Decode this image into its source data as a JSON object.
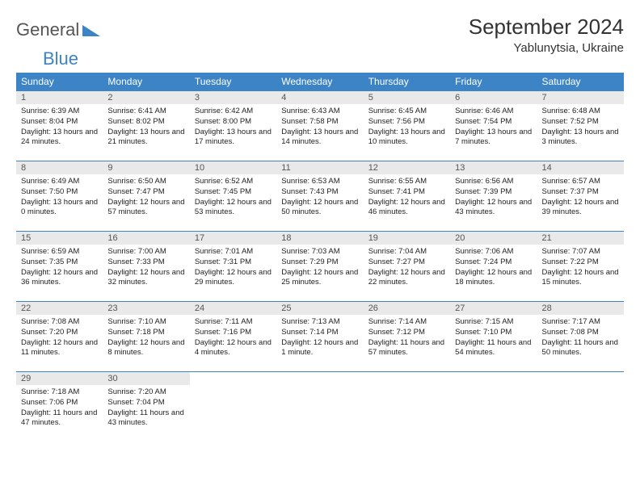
{
  "logo": {
    "text1": "Genera",
    "text2": "l",
    "text3": "Blue"
  },
  "header": {
    "title": "September 2024",
    "location": "Yablunytsia, Ukraine"
  },
  "colors": {
    "header_bg": "#3d84c6",
    "header_fg": "#ffffff",
    "daynum_bg": "#e9e9e9",
    "border": "#3d84c6",
    "text": "#222222"
  },
  "day_headers": [
    "Sunday",
    "Monday",
    "Tuesday",
    "Wednesday",
    "Thursday",
    "Friday",
    "Saturday"
  ],
  "weeks": [
    [
      {
        "n": "1",
        "sr": "6:39 AM",
        "ss": "8:04 PM",
        "dl": "13 hours and 24 minutes."
      },
      {
        "n": "2",
        "sr": "6:41 AM",
        "ss": "8:02 PM",
        "dl": "13 hours and 21 minutes."
      },
      {
        "n": "3",
        "sr": "6:42 AM",
        "ss": "8:00 PM",
        "dl": "13 hours and 17 minutes."
      },
      {
        "n": "4",
        "sr": "6:43 AM",
        "ss": "7:58 PM",
        "dl": "13 hours and 14 minutes."
      },
      {
        "n": "5",
        "sr": "6:45 AM",
        "ss": "7:56 PM",
        "dl": "13 hours and 10 minutes."
      },
      {
        "n": "6",
        "sr": "6:46 AM",
        "ss": "7:54 PM",
        "dl": "13 hours and 7 minutes."
      },
      {
        "n": "7",
        "sr": "6:48 AM",
        "ss": "7:52 PM",
        "dl": "13 hours and 3 minutes."
      }
    ],
    [
      {
        "n": "8",
        "sr": "6:49 AM",
        "ss": "7:50 PM",
        "dl": "13 hours and 0 minutes."
      },
      {
        "n": "9",
        "sr": "6:50 AM",
        "ss": "7:47 PM",
        "dl": "12 hours and 57 minutes."
      },
      {
        "n": "10",
        "sr": "6:52 AM",
        "ss": "7:45 PM",
        "dl": "12 hours and 53 minutes."
      },
      {
        "n": "11",
        "sr": "6:53 AM",
        "ss": "7:43 PM",
        "dl": "12 hours and 50 minutes."
      },
      {
        "n": "12",
        "sr": "6:55 AM",
        "ss": "7:41 PM",
        "dl": "12 hours and 46 minutes."
      },
      {
        "n": "13",
        "sr": "6:56 AM",
        "ss": "7:39 PM",
        "dl": "12 hours and 43 minutes."
      },
      {
        "n": "14",
        "sr": "6:57 AM",
        "ss": "7:37 PM",
        "dl": "12 hours and 39 minutes."
      }
    ],
    [
      {
        "n": "15",
        "sr": "6:59 AM",
        "ss": "7:35 PM",
        "dl": "12 hours and 36 minutes."
      },
      {
        "n": "16",
        "sr": "7:00 AM",
        "ss": "7:33 PM",
        "dl": "12 hours and 32 minutes."
      },
      {
        "n": "17",
        "sr": "7:01 AM",
        "ss": "7:31 PM",
        "dl": "12 hours and 29 minutes."
      },
      {
        "n": "18",
        "sr": "7:03 AM",
        "ss": "7:29 PM",
        "dl": "12 hours and 25 minutes."
      },
      {
        "n": "19",
        "sr": "7:04 AM",
        "ss": "7:27 PM",
        "dl": "12 hours and 22 minutes."
      },
      {
        "n": "20",
        "sr": "7:06 AM",
        "ss": "7:24 PM",
        "dl": "12 hours and 18 minutes."
      },
      {
        "n": "21",
        "sr": "7:07 AM",
        "ss": "7:22 PM",
        "dl": "12 hours and 15 minutes."
      }
    ],
    [
      {
        "n": "22",
        "sr": "7:08 AM",
        "ss": "7:20 PM",
        "dl": "12 hours and 11 minutes."
      },
      {
        "n": "23",
        "sr": "7:10 AM",
        "ss": "7:18 PM",
        "dl": "12 hours and 8 minutes."
      },
      {
        "n": "24",
        "sr": "7:11 AM",
        "ss": "7:16 PM",
        "dl": "12 hours and 4 minutes."
      },
      {
        "n": "25",
        "sr": "7:13 AM",
        "ss": "7:14 PM",
        "dl": "12 hours and 1 minute."
      },
      {
        "n": "26",
        "sr": "7:14 AM",
        "ss": "7:12 PM",
        "dl": "11 hours and 57 minutes."
      },
      {
        "n": "27",
        "sr": "7:15 AM",
        "ss": "7:10 PM",
        "dl": "11 hours and 54 minutes."
      },
      {
        "n": "28",
        "sr": "7:17 AM",
        "ss": "7:08 PM",
        "dl": "11 hours and 50 minutes."
      }
    ],
    [
      {
        "n": "29",
        "sr": "7:18 AM",
        "ss": "7:06 PM",
        "dl": "11 hours and 47 minutes."
      },
      {
        "n": "30",
        "sr": "7:20 AM",
        "ss": "7:04 PM",
        "dl": "11 hours and 43 minutes."
      },
      null,
      null,
      null,
      null,
      null
    ]
  ],
  "labels": {
    "sunrise": "Sunrise: ",
    "sunset": "Sunset: ",
    "daylight": "Daylight: "
  }
}
